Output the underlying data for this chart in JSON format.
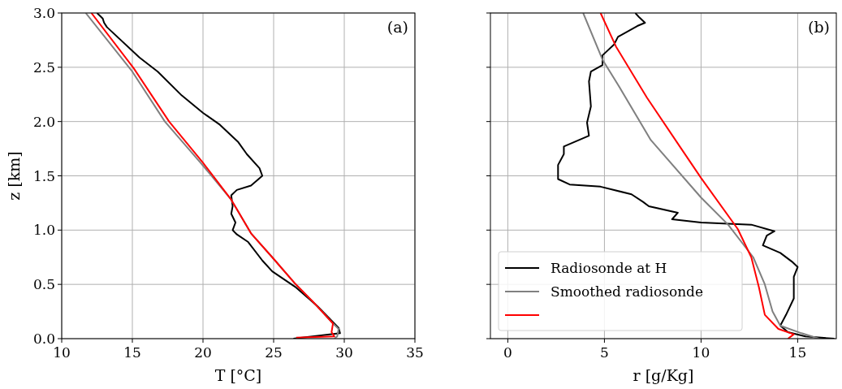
{
  "chart_data": [
    {
      "type": "line",
      "xlabel": "T [°C]",
      "ylabel": "z [km]",
      "xlim": [
        10,
        35
      ],
      "ylim": [
        0,
        3
      ],
      "xticks": [
        10,
        15,
        20,
        25,
        30,
        35
      ],
      "yticks": [
        {
          "value": 0,
          "label": "0.0"
        },
        {
          "value": 0.5,
          "label": "0.5"
        },
        {
          "value": 1,
          "label": "1.0"
        },
        {
          "value": 1.5,
          "label": "1.5"
        },
        {
          "value": 2,
          "label": "2.0"
        },
        {
          "value": 2.5,
          "label": "2.5"
        },
        {
          "value": 3,
          "label": "3.0"
        }
      ],
      "grid": true,
      "legend": false,
      "annotations": [
        "(a)"
      ],
      "series": [
        {
          "color": "#000000",
          "x": [
            26.4,
            29.7,
            29.6,
            28.1,
            26.6,
            24.9,
            24.2,
            23.2,
            22.4,
            22.1,
            22.3,
            22.0,
            22.1,
            22.0,
            22.4,
            23.4,
            24.2,
            24.0,
            23.1,
            22.5,
            21.2,
            20.0,
            18.5,
            16.8,
            15.5,
            13.2,
            13.0,
            12.9,
            12.5
          ],
          "values": [
            0,
            0.05,
            0.1,
            0.3,
            0.47,
            0.62,
            0.72,
            0.89,
            0.96,
            1.0,
            1.07,
            1.15,
            1.22,
            1.32,
            1.37,
            1.41,
            1.5,
            1.57,
            1.7,
            1.81,
            1.97,
            2.08,
            2.24,
            2.46,
            2.59,
            2.87,
            2.91,
            2.95,
            3.0
          ]
        },
        {
          "color": "#808080",
          "x": [
            29.3,
            29.5,
            29.6,
            29.2,
            28.0,
            26.5,
            24.9,
            23.4,
            22.0,
            19.9,
            17.3,
            15.0,
            11.7
          ],
          "values": [
            0,
            0.02,
            0.09,
            0.14,
            0.31,
            0.51,
            0.75,
            0.97,
            1.28,
            1.61,
            2.0,
            2.46,
            3.0
          ]
        },
        {
          "color": "#ff0000",
          "x": [
            26.6,
            29.3,
            29.1,
            29.2,
            28.0,
            26.5,
            24.9,
            23.4,
            22.0,
            20.0,
            17.6,
            15.1,
            12.1
          ],
          "values": [
            0.01,
            0.02,
            0.06,
            0.14,
            0.31,
            0.51,
            0.75,
            0.97,
            1.28,
            1.62,
            2.0,
            2.49,
            3.0
          ]
        }
      ]
    },
    {
      "type": "line",
      "xlabel": "r [g/Kg]",
      "xlim": [
        -0.9,
        17
      ],
      "ylim": [
        0,
        3
      ],
      "xticks": [
        0,
        5,
        10,
        15
      ],
      "yticks": [
        {
          "value": 0,
          "label": null
        },
        {
          "value": 0.5,
          "label": null
        },
        {
          "value": 1,
          "label": null
        },
        {
          "value": 1.5,
          "label": null
        },
        {
          "value": 2,
          "label": null
        },
        {
          "value": 2.5,
          "label": null
        },
        {
          "value": 3,
          "label": null
        }
      ],
      "tick_labels": "x",
      "grid": true,
      "legend": "bottom left",
      "annotations": [
        "(b)"
      ],
      "series": [
        {
          "name": "Radiosonde at H",
          "color": "#000000",
          "x": [
            16.9,
            15.4,
            14.5,
            14.1,
            14.4,
            14.8,
            14.8,
            15.0,
            14.7,
            14.1,
            13.2,
            13.4,
            13.8,
            12.6,
            10.0,
            8.5,
            8.8,
            7.3,
            7.0,
            6.4,
            4.8,
            3.2,
            2.6,
            2.6,
            2.9,
            2.9,
            4.2,
            4.1,
            4.3,
            4.2,
            4.3,
            4.9,
            4.9,
            5.5,
            5.7,
            6.7,
            7.1,
            6.8,
            6.6
          ],
          "values": [
            0,
            0.02,
            0.06,
            0.12,
            0.22,
            0.37,
            0.57,
            0.66,
            0.71,
            0.79,
            0.86,
            0.95,
            0.99,
            1.05,
            1.07,
            1.1,
            1.16,
            1.22,
            1.26,
            1.33,
            1.4,
            1.42,
            1.47,
            1.6,
            1.7,
            1.77,
            1.87,
            1.99,
            2.14,
            2.37,
            2.46,
            2.52,
            2.61,
            2.71,
            2.78,
            2.88,
            2.91,
            2.96,
            3.0
          ]
        },
        {
          "name": "Smoothed radiosonde",
          "color": "#808080",
          "x": [
            16.1,
            15.2,
            14.1,
            13.7,
            13.3,
            12.7,
            11.4,
            10.0,
            7.4,
            5.7,
            4.9,
            3.9
          ],
          "values": [
            0,
            0.05,
            0.12,
            0.25,
            0.5,
            0.75,
            1.05,
            1.3,
            1.83,
            2.34,
            2.57,
            3.0
          ]
        },
        {
          "color": "#ff0000",
          "x": [
            14.5,
            14.8,
            14.0,
            13.3,
            13.0,
            12.6,
            11.9,
            10.0,
            8.9,
            7.2,
            5.6,
            4.8
          ],
          "values": [
            0,
            0.04,
            0.09,
            0.22,
            0.47,
            0.75,
            1.01,
            1.48,
            1.77,
            2.22,
            2.69,
            3.0
          ]
        }
      ]
    }
  ]
}
